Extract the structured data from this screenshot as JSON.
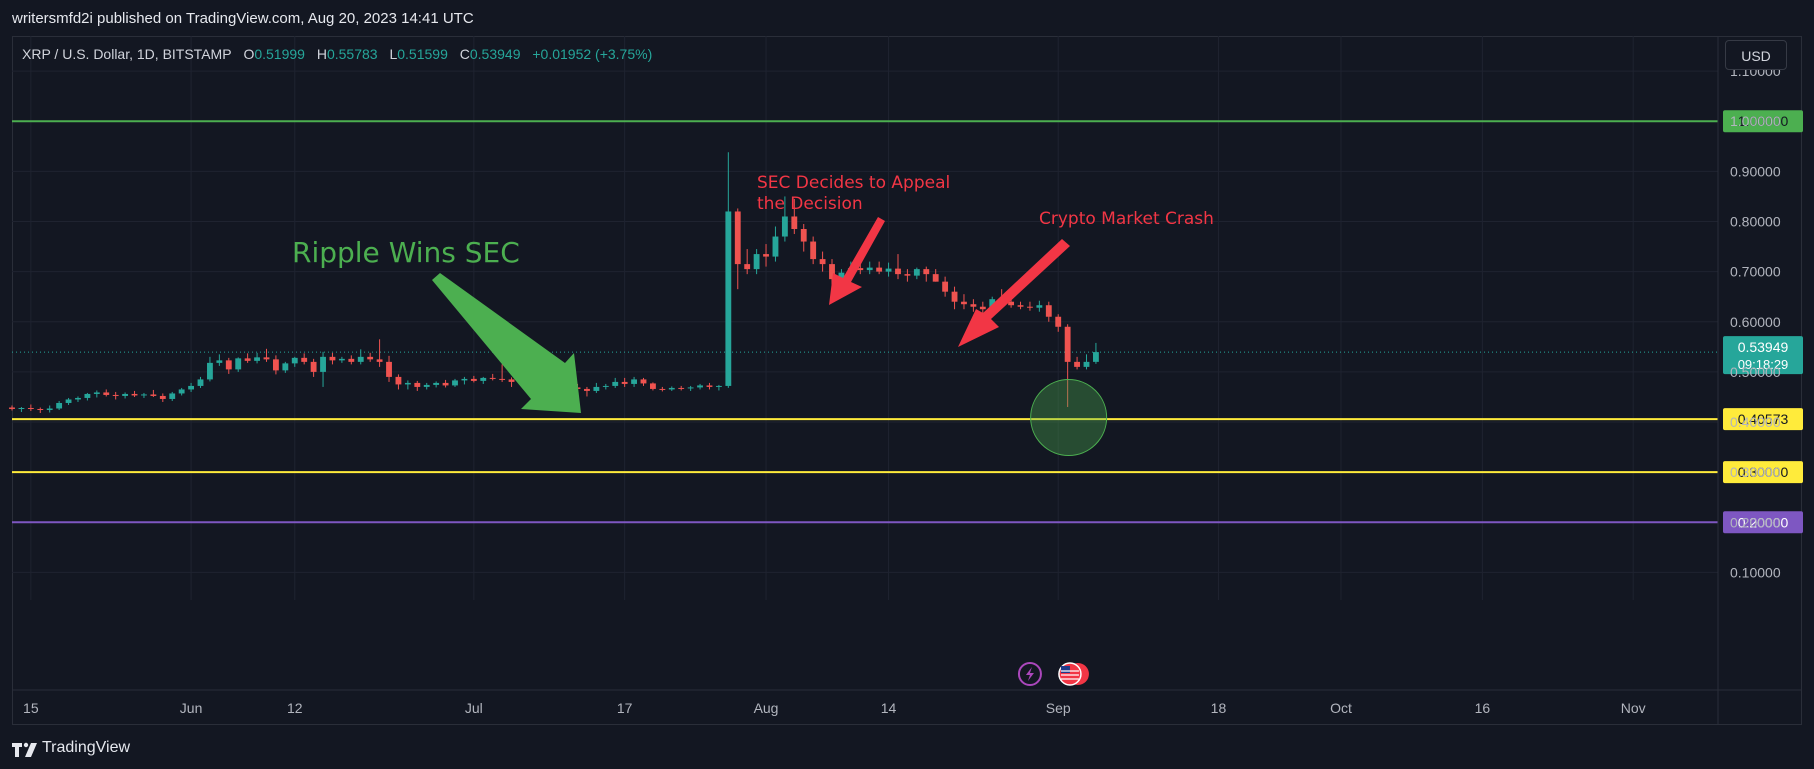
{
  "header": {
    "published_by": "writersmfd2i published on TradingView.com, Aug 20, 2023 14:41 UTC"
  },
  "legend": {
    "symbol": "XRP / U.S. Dollar, 1D, BITSTAMP",
    "open_label": "O",
    "open": "0.51999",
    "high_label": "H",
    "high": "0.55783",
    "low_label": "L",
    "low": "0.51599",
    "close_label": "C",
    "close": "0.53949",
    "change": "+0.01952 (+3.75%)"
  },
  "currency_button": "USD",
  "footer": {
    "brand": "TradingView"
  },
  "colors": {
    "background": "#131722",
    "grid": "#1f2330",
    "up": "#26a69a",
    "down": "#ef5350",
    "resistance": "#4caf50",
    "support": "#ffeb3b",
    "purple": "#7e57c2",
    "annotation_green": "#4caf50",
    "annotation_red": "#f23645"
  },
  "chart_data": {
    "type": "candlestick",
    "symbol": "XRP / U.S. Dollar",
    "interval": "1D",
    "exchange": "BITSTAMP",
    "ylim": [
      0.045,
      1.17
    ],
    "y_ticks": [
      "0.10000",
      "0.20000",
      "0.30000",
      "0.40000",
      "0.50000",
      "0.60000",
      "0.70000",
      "0.80000",
      "0.90000",
      "1.00000",
      "1.10000"
    ],
    "x_ticks": [
      "15",
      "Jun",
      "12",
      "Jul",
      "17",
      "Aug",
      "14",
      "Sep",
      "18",
      "Oct",
      "16",
      "Nov"
    ],
    "x_tick_dates": [
      "2023-05-15",
      "2023-06-01",
      "2023-06-12",
      "2023-07-01",
      "2023-07-17",
      "2023-08-01",
      "2023-08-14",
      "2023-09-01",
      "2023-09-18",
      "2023-10-01",
      "2023-10-16",
      "2023-11-01"
    ],
    "x_range": [
      "2023-05-13",
      "2023-11-10"
    ],
    "grid": true,
    "candles": [
      {
        "date": "2023-05-13",
        "o": 0.429,
        "h": 0.433,
        "l": 0.423,
        "c": 0.426
      },
      {
        "date": "2023-05-14",
        "o": 0.426,
        "h": 0.43,
        "l": 0.42,
        "c": 0.428
      },
      {
        "date": "2023-05-15",
        "o": 0.428,
        "h": 0.435,
        "l": 0.422,
        "c": 0.426
      },
      {
        "date": "2023-05-16",
        "o": 0.426,
        "h": 0.429,
        "l": 0.418,
        "c": 0.424
      },
      {
        "date": "2023-05-17",
        "o": 0.424,
        "h": 0.433,
        "l": 0.419,
        "c": 0.427
      },
      {
        "date": "2023-05-18",
        "o": 0.427,
        "h": 0.442,
        "l": 0.424,
        "c": 0.438
      },
      {
        "date": "2023-05-19",
        "o": 0.438,
        "h": 0.448,
        "l": 0.434,
        "c": 0.445
      },
      {
        "date": "2023-05-20",
        "o": 0.445,
        "h": 0.451,
        "l": 0.44,
        "c": 0.448
      },
      {
        "date": "2023-05-21",
        "o": 0.448,
        "h": 0.458,
        "l": 0.443,
        "c": 0.456
      },
      {
        "date": "2023-05-22",
        "o": 0.456,
        "h": 0.463,
        "l": 0.449,
        "c": 0.459
      },
      {
        "date": "2023-05-23",
        "o": 0.459,
        "h": 0.465,
        "l": 0.451,
        "c": 0.454
      },
      {
        "date": "2023-05-24",
        "o": 0.454,
        "h": 0.46,
        "l": 0.445,
        "c": 0.452
      },
      {
        "date": "2023-05-25",
        "o": 0.452,
        "h": 0.459,
        "l": 0.447,
        "c": 0.456
      },
      {
        "date": "2023-05-26",
        "o": 0.456,
        "h": 0.462,
        "l": 0.45,
        "c": 0.453
      },
      {
        "date": "2023-05-27",
        "o": 0.453,
        "h": 0.458,
        "l": 0.448,
        "c": 0.455
      },
      {
        "date": "2023-05-28",
        "o": 0.455,
        "h": 0.464,
        "l": 0.45,
        "c": 0.452
      },
      {
        "date": "2023-05-29",
        "o": 0.452,
        "h": 0.457,
        "l": 0.44,
        "c": 0.446
      },
      {
        "date": "2023-05-30",
        "o": 0.446,
        "h": 0.46,
        "l": 0.442,
        "c": 0.457
      },
      {
        "date": "2023-05-31",
        "o": 0.457,
        "h": 0.468,
        "l": 0.453,
        "c": 0.465
      },
      {
        "date": "2023-06-01",
        "o": 0.465,
        "h": 0.478,
        "l": 0.46,
        "c": 0.472
      },
      {
        "date": "2023-06-02",
        "o": 0.472,
        "h": 0.49,
        "l": 0.468,
        "c": 0.485
      },
      {
        "date": "2023-06-03",
        "o": 0.485,
        "h": 0.53,
        "l": 0.481,
        "c": 0.518
      },
      {
        "date": "2023-06-04",
        "o": 0.518,
        "h": 0.535,
        "l": 0.512,
        "c": 0.523
      },
      {
        "date": "2023-06-05",
        "o": 0.523,
        "h": 0.528,
        "l": 0.496,
        "c": 0.505
      },
      {
        "date": "2023-06-06",
        "o": 0.505,
        "h": 0.529,
        "l": 0.5,
        "c": 0.527
      },
      {
        "date": "2023-06-07",
        "o": 0.527,
        "h": 0.537,
        "l": 0.518,
        "c": 0.522
      },
      {
        "date": "2023-06-08",
        "o": 0.522,
        "h": 0.538,
        "l": 0.517,
        "c": 0.529
      },
      {
        "date": "2023-06-09",
        "o": 0.529,
        "h": 0.546,
        "l": 0.52,
        "c": 0.525
      },
      {
        "date": "2023-06-10",
        "o": 0.525,
        "h": 0.533,
        "l": 0.495,
        "c": 0.503
      },
      {
        "date": "2023-06-11",
        "o": 0.503,
        "h": 0.52,
        "l": 0.498,
        "c": 0.517
      },
      {
        "date": "2023-06-12",
        "o": 0.517,
        "h": 0.53,
        "l": 0.51,
        "c": 0.528
      },
      {
        "date": "2023-06-13",
        "o": 0.528,
        "h": 0.537,
        "l": 0.515,
        "c": 0.52
      },
      {
        "date": "2023-06-14",
        "o": 0.52,
        "h": 0.526,
        "l": 0.49,
        "c": 0.5
      },
      {
        "date": "2023-06-15",
        "o": 0.5,
        "h": 0.54,
        "l": 0.47,
        "c": 0.53
      },
      {
        "date": "2023-06-16",
        "o": 0.53,
        "h": 0.538,
        "l": 0.515,
        "c": 0.523
      },
      {
        "date": "2023-06-17",
        "o": 0.523,
        "h": 0.53,
        "l": 0.518,
        "c": 0.526
      },
      {
        "date": "2023-06-18",
        "o": 0.526,
        "h": 0.533,
        "l": 0.515,
        "c": 0.52
      },
      {
        "date": "2023-06-19",
        "o": 0.52,
        "h": 0.545,
        "l": 0.515,
        "c": 0.53
      },
      {
        "date": "2023-06-20",
        "o": 0.53,
        "h": 0.538,
        "l": 0.52,
        "c": 0.525
      },
      {
        "date": "2023-06-21",
        "o": 0.525,
        "h": 0.565,
        "l": 0.51,
        "c": 0.52
      },
      {
        "date": "2023-06-22",
        "o": 0.52,
        "h": 0.532,
        "l": 0.48,
        "c": 0.49
      },
      {
        "date": "2023-06-23",
        "o": 0.49,
        "h": 0.495,
        "l": 0.465,
        "c": 0.475
      },
      {
        "date": "2023-06-24",
        "o": 0.475,
        "h": 0.483,
        "l": 0.465,
        "c": 0.478
      },
      {
        "date": "2023-06-25",
        "o": 0.478,
        "h": 0.482,
        "l": 0.462,
        "c": 0.47
      },
      {
        "date": "2023-06-26",
        "o": 0.47,
        "h": 0.478,
        "l": 0.465,
        "c": 0.474
      },
      {
        "date": "2023-06-27",
        "o": 0.474,
        "h": 0.481,
        "l": 0.469,
        "c": 0.478
      },
      {
        "date": "2023-06-28",
        "o": 0.478,
        "h": 0.484,
        "l": 0.469,
        "c": 0.473
      },
      {
        "date": "2023-06-29",
        "o": 0.473,
        "h": 0.486,
        "l": 0.47,
        "c": 0.483
      },
      {
        "date": "2023-06-30",
        "o": 0.483,
        "h": 0.49,
        "l": 0.475,
        "c": 0.486
      },
      {
        "date": "2023-07-01",
        "o": 0.486,
        "h": 0.492,
        "l": 0.479,
        "c": 0.482
      },
      {
        "date": "2023-07-02",
        "o": 0.482,
        "h": 0.49,
        "l": 0.476,
        "c": 0.488
      },
      {
        "date": "2023-07-03",
        "o": 0.488,
        "h": 0.496,
        "l": 0.483,
        "c": 0.486
      },
      {
        "date": "2023-07-04",
        "o": 0.486,
        "h": 0.515,
        "l": 0.48,
        "c": 0.485
      },
      {
        "date": "2023-07-05",
        "o": 0.485,
        "h": 0.489,
        "l": 0.47,
        "c": 0.48
      },
      {
        "date": "2023-07-06",
        "o": 0.48,
        "h": 0.49,
        "l": 0.472,
        "c": 0.487
      },
      {
        "date": "2023-07-07",
        "o": 0.487,
        "h": 0.491,
        "l": 0.477,
        "c": 0.48
      },
      {
        "date": "2023-07-08",
        "o": 0.48,
        "h": 0.484,
        "l": 0.473,
        "c": 0.477
      },
      {
        "date": "2023-07-09",
        "o": 0.477,
        "h": 0.481,
        "l": 0.469,
        "c": 0.472
      },
      {
        "date": "2023-07-10",
        "o": 0.472,
        "h": 0.476,
        "l": 0.451,
        "c": 0.458
      },
      {
        "date": "2023-07-11",
        "o": 0.458,
        "h": 0.471,
        "l": 0.455,
        "c": 0.469
      },
      {
        "date": "2023-07-12",
        "o": 0.469,
        "h": 0.476,
        "l": 0.462,
        "c": 0.466
      },
      {
        "date": "2023-07-13",
        "o": 0.466,
        "h": 0.47,
        "l": 0.451,
        "c": 0.462
      },
      {
        "date": "2023-07-14",
        "o": 0.462,
        "h": 0.478,
        "l": 0.458,
        "c": 0.47
      },
      {
        "date": "2023-07-15",
        "o": 0.47,
        "h": 0.476,
        "l": 0.465,
        "c": 0.472
      },
      {
        "date": "2023-07-16",
        "o": 0.472,
        "h": 0.488,
        "l": 0.468,
        "c": 0.48
      },
      {
        "date": "2023-07-17",
        "o": 0.48,
        "h": 0.488,
        "l": 0.47,
        "c": 0.476
      },
      {
        "date": "2023-07-18",
        "o": 0.476,
        "h": 0.49,
        "l": 0.47,
        "c": 0.485
      },
      {
        "date": "2023-07-19",
        "o": 0.485,
        "h": 0.488,
        "l": 0.472,
        "c": 0.477
      },
      {
        "date": "2023-07-20",
        "o": 0.477,
        "h": 0.479,
        "l": 0.463,
        "c": 0.466
      },
      {
        "date": "2023-07-21",
        "o": 0.466,
        "h": 0.47,
        "l": 0.461,
        "c": 0.465
      },
      {
        "date": "2023-07-22",
        "o": 0.465,
        "h": 0.471,
        "l": 0.462,
        "c": 0.468
      },
      {
        "date": "2023-07-23",
        "o": 0.468,
        "h": 0.472,
        "l": 0.463,
        "c": 0.467
      },
      {
        "date": "2023-07-24",
        "o": 0.467,
        "h": 0.472,
        "l": 0.462,
        "c": 0.469
      },
      {
        "date": "2023-07-25",
        "o": 0.469,
        "h": 0.476,
        "l": 0.465,
        "c": 0.473
      },
      {
        "date": "2023-07-26",
        "o": 0.473,
        "h": 0.478,
        "l": 0.465,
        "c": 0.47
      },
      {
        "date": "2023-07-27",
        "o": 0.47,
        "h": 0.474,
        "l": 0.463,
        "c": 0.472
      },
      {
        "date": "2023-07-28",
        "o": 0.472,
        "h": 0.938,
        "l": 0.468,
        "c": 0.82
      },
      {
        "date": "2023-07-29",
        "o": 0.82,
        "h": 0.826,
        "l": 0.665,
        "c": 0.715
      },
      {
        "date": "2023-07-30",
        "o": 0.715,
        "h": 0.745,
        "l": 0.695,
        "c": 0.705
      },
      {
        "date": "2023-07-31",
        "o": 0.705,
        "h": 0.745,
        "l": 0.695,
        "c": 0.735
      },
      {
        "date": "2023-08-01",
        "o": 0.735,
        "h": 0.755,
        "l": 0.71,
        "c": 0.73
      },
      {
        "date": "2023-08-02",
        "o": 0.73,
        "h": 0.79,
        "l": 0.72,
        "c": 0.77
      },
      {
        "date": "2023-08-03",
        "o": 0.77,
        "h": 0.85,
        "l": 0.76,
        "c": 0.81
      },
      {
        "date": "2023-08-04",
        "o": 0.81,
        "h": 0.845,
        "l": 0.775,
        "c": 0.785
      },
      {
        "date": "2023-08-05",
        "o": 0.785,
        "h": 0.795,
        "l": 0.74,
        "c": 0.76
      },
      {
        "date": "2023-08-06",
        "o": 0.76,
        "h": 0.77,
        "l": 0.715,
        "c": 0.725
      },
      {
        "date": "2023-08-07",
        "o": 0.725,
        "h": 0.74,
        "l": 0.7,
        "c": 0.715
      },
      {
        "date": "2023-08-08",
        "o": 0.715,
        "h": 0.725,
        "l": 0.67,
        "c": 0.685
      },
      {
        "date": "2023-08-09",
        "o": 0.685,
        "h": 0.705,
        "l": 0.67,
        "c": 0.698
      },
      {
        "date": "2023-08-10",
        "o": 0.698,
        "h": 0.72,
        "l": 0.69,
        "c": 0.707
      },
      {
        "date": "2023-08-11",
        "o": 0.707,
        "h": 0.715,
        "l": 0.695,
        "c": 0.703
      },
      {
        "date": "2023-08-12",
        "o": 0.703,
        "h": 0.72,
        "l": 0.695,
        "c": 0.708
      },
      {
        "date": "2023-08-13",
        "o": 0.708,
        "h": 0.72,
        "l": 0.695,
        "c": 0.7
      },
      {
        "date": "2023-08-14",
        "o": 0.7,
        "h": 0.718,
        "l": 0.69,
        "c": 0.706
      },
      {
        "date": "2023-08-15",
        "o": 0.706,
        "h": 0.735,
        "l": 0.685,
        "c": 0.695
      },
      {
        "date": "2023-08-16",
        "o": 0.695,
        "h": 0.705,
        "l": 0.68,
        "c": 0.692
      },
      {
        "date": "2023-08-17",
        "o": 0.692,
        "h": 0.708,
        "l": 0.685,
        "c": 0.705
      },
      {
        "date": "2023-08-18",
        "o": 0.705,
        "h": 0.71,
        "l": 0.68,
        "c": 0.695
      },
      {
        "date": "2023-08-19",
        "o": 0.695,
        "h": 0.705,
        "l": 0.68,
        "c": 0.68
      }
    ],
    "candles_after_crash": [
      {
        "date": "2023-08-20",
        "o": 0.68,
        "h": 0.69,
        "l": 0.65,
        "c": 0.66
      },
      {
        "date": "2023-08-21",
        "o": 0.66,
        "h": 0.67,
        "l": 0.625,
        "c": 0.64
      },
      {
        "date": "2023-08-22",
        "o": 0.64,
        "h": 0.655,
        "l": 0.625,
        "c": 0.635
      },
      {
        "date": "2023-08-23",
        "o": 0.635,
        "h": 0.645,
        "l": 0.62,
        "c": 0.63
      },
      {
        "date": "2023-08-24",
        "o": 0.63,
        "h": 0.64,
        "l": 0.605,
        "c": 0.625
      },
      {
        "date": "2023-08-25",
        "o": 0.625,
        "h": 0.65,
        "l": 0.615,
        "c": 0.645
      },
      {
        "date": "2023-08-26",
        "o": 0.645,
        "h": 0.665,
        "l": 0.635,
        "c": 0.64
      },
      {
        "date": "2023-08-27",
        "o": 0.64,
        "h": 0.65,
        "l": 0.628,
        "c": 0.633
      },
      {
        "date": "2023-08-28",
        "o": 0.633,
        "h": 0.64,
        "l": 0.625,
        "c": 0.63
      },
      {
        "date": "2023-08-29",
        "o": 0.63,
        "h": 0.64,
        "l": 0.622,
        "c": 0.628
      },
      {
        "date": "2023-08-30",
        "o": 0.628,
        "h": 0.642,
        "l": 0.62,
        "c": 0.633
      },
      {
        "date": "2023-08-31",
        "o": 0.633,
        "h": 0.64,
        "l": 0.6,
        "c": 0.61
      },
      {
        "date": "2023-09-01",
        "o": 0.61,
        "h": 0.615,
        "l": 0.58,
        "c": 0.59
      },
      {
        "date": "2023-09-02",
        "o": 0.59,
        "h": 0.595,
        "l": 0.43,
        "c": 0.52
      },
      {
        "date": "2023-09-03",
        "o": 0.52,
        "h": 0.53,
        "l": 0.505,
        "c": 0.51
      },
      {
        "date": "2023-09-04",
        "o": 0.51,
        "h": 0.535,
        "l": 0.505,
        "c": 0.52
      },
      {
        "date": "2023-09-05",
        "o": 0.52,
        "h": 0.5578,
        "l": 0.516,
        "c": 0.5395
      }
    ],
    "horizontal_levels": [
      {
        "price": 1.0,
        "label": "1.00000",
        "color": "#4caf50"
      },
      {
        "price": 0.40573,
        "label": "0.40573",
        "color": "#ffeb3b"
      },
      {
        "price": 0.3,
        "label": "0.30000",
        "color": "#ffeb3b"
      },
      {
        "price": 0.2,
        "label": "0.20000",
        "color": "#7e57c2"
      }
    ],
    "last_price": {
      "price": 0.53949,
      "label": "0.53949",
      "countdown": "09:18:29"
    },
    "annotations": [
      {
        "text": "Ripple Wins SEC",
        "color": "#4caf50"
      },
      {
        "text": "SEC Decides to Appeal",
        "text2": "the Decision",
        "color": "#f23645"
      },
      {
        "text": "Crypto Market Crash",
        "color": "#f23645"
      }
    ]
  }
}
